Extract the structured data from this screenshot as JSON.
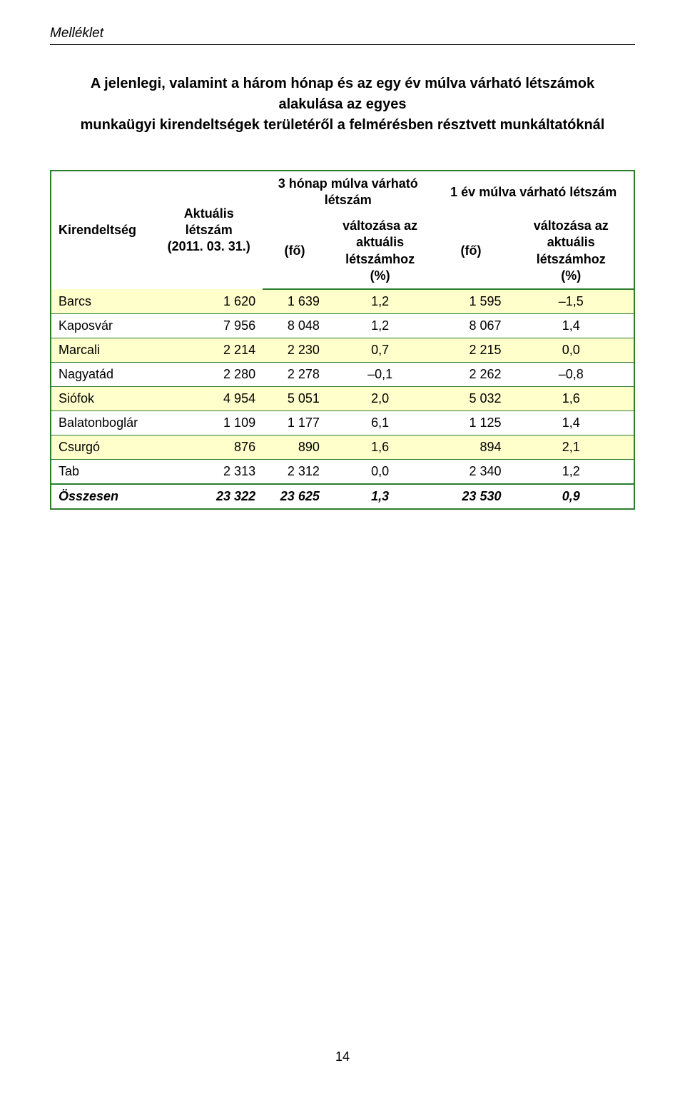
{
  "header": {
    "section_label": "Melléklet"
  },
  "title_line1": "A jelenlegi, valamint a három hónap és az egy év múlva várható létszámok alakulása az egyes",
  "title_line2": "munkaügyi kirendeltségek területéről a felmérésben résztvett munkáltatóknál",
  "table": {
    "border_color": "#2e7d2e",
    "odd_row_bg": "#ffffcc",
    "columns": {
      "c0": "Kirendeltség",
      "c1_l1": "Aktuális",
      "c1_l2": "létszám",
      "c1_l3": "(2011. 03. 31.)",
      "g1_l1": "3 hónap múlva várható",
      "g1_l2": "létszám",
      "g2": "1 év múlva várható létszám",
      "fo": "(fő)",
      "pct_l1": "változása az",
      "pct_l2": "aktuális",
      "pct_l3": "létszámhoz",
      "pct_l4": "(%)"
    },
    "rows": [
      {
        "name": "Barcs",
        "actual": "1 620",
        "m3_fo": "1 639",
        "m3_pct": "1,2",
        "y1_fo": "1 595",
        "y1_pct": "–1,5"
      },
      {
        "name": "Kaposvár",
        "actual": "7 956",
        "m3_fo": "8 048",
        "m3_pct": "1,2",
        "y1_fo": "8 067",
        "y1_pct": "1,4"
      },
      {
        "name": "Marcali",
        "actual": "2 214",
        "m3_fo": "2 230",
        "m3_pct": "0,7",
        "y1_fo": "2 215",
        "y1_pct": "0,0"
      },
      {
        "name": "Nagyatád",
        "actual": "2 280",
        "m3_fo": "2 278",
        "m3_pct": "–0,1",
        "y1_fo": "2 262",
        "y1_pct": "–0,8"
      },
      {
        "name": "Siófok",
        "actual": "4 954",
        "m3_fo": "5 051",
        "m3_pct": "2,0",
        "y1_fo": "5 032",
        "y1_pct": "1,6"
      },
      {
        "name": "Balatonboglár",
        "actual": "1 109",
        "m3_fo": "1 177",
        "m3_pct": "6,1",
        "y1_fo": "1 125",
        "y1_pct": "1,4"
      },
      {
        "name": "Csurgó",
        "actual": "876",
        "m3_fo": "890",
        "m3_pct": "1,6",
        "y1_fo": "894",
        "y1_pct": "2,1"
      },
      {
        "name": "Tab",
        "actual": "2 313",
        "m3_fo": "2 312",
        "m3_pct": "0,0",
        "y1_fo": "2 340",
        "y1_pct": "1,2"
      }
    ],
    "total": {
      "name": "Összesen",
      "actual": "23 322",
      "m3_fo": "23 625",
      "m3_pct": "1,3",
      "y1_fo": "23 530",
      "y1_pct": "0,9"
    }
  },
  "page_number": "14"
}
